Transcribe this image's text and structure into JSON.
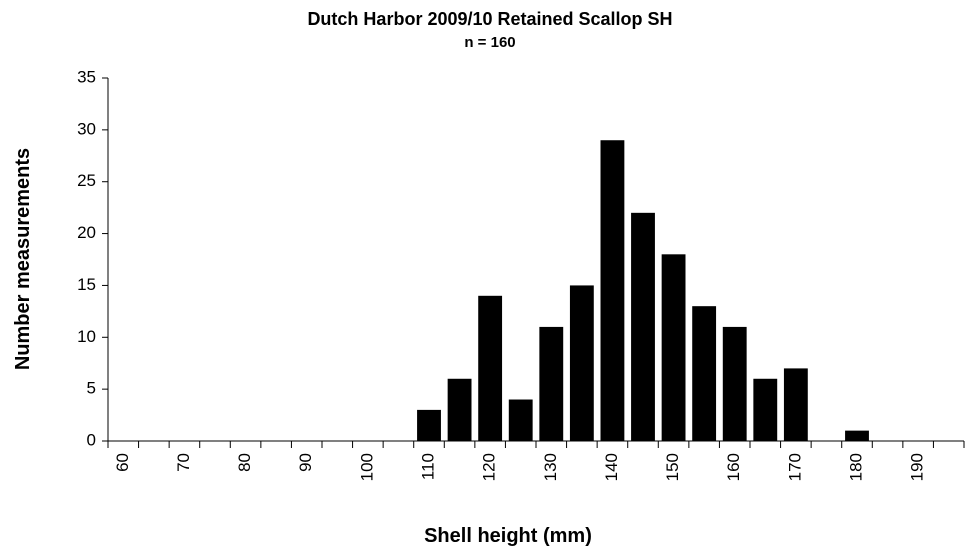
{
  "chart_data": {
    "type": "bar",
    "title": "Dutch Harbor 2009/10 Retained Scallop SH",
    "subtitle": "n = 160",
    "x_label": "Shell height (mm)",
    "y_label": "Number measurements",
    "categories": [
      "60",
      null,
      "70",
      null,
      "80",
      null,
      "90",
      null,
      "100",
      null,
      "110",
      null,
      "120",
      null,
      "130",
      null,
      "140",
      null,
      "150",
      null,
      "160",
      null,
      "170",
      null,
      "180",
      null,
      "190",
      null
    ],
    "values": [
      0,
      0,
      0,
      0,
      0,
      0,
      0,
      0,
      0,
      0,
      3,
      6,
      14,
      4,
      11,
      15,
      29,
      22,
      18,
      13,
      11,
      6,
      7,
      0,
      1,
      0,
      0,
      0
    ],
    "color": "#000000",
    "ylim": [
      0,
      35
    ],
    "yticks": [
      0,
      5,
      10,
      15,
      20,
      25,
      30,
      35
    ],
    "grid": false
  }
}
